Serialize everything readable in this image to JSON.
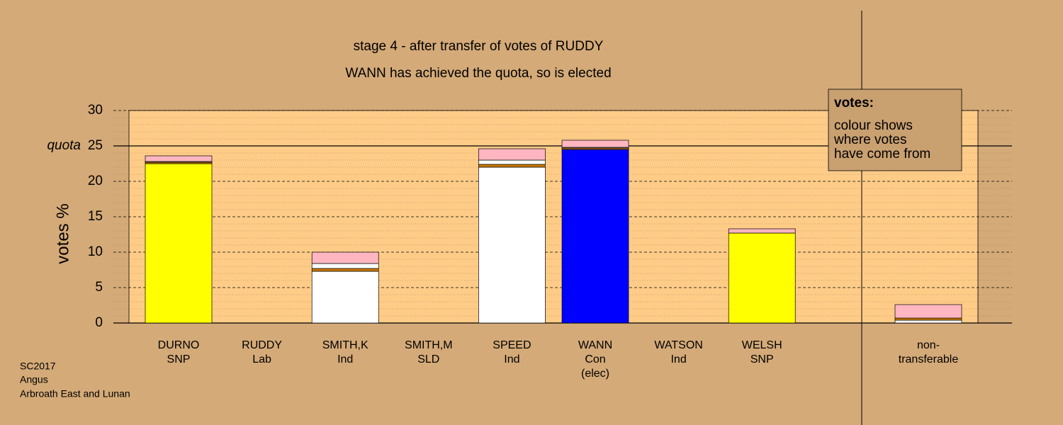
{
  "chart_data": {
    "type": "stacked_bar",
    "title": "stage 4 - after transfer of votes of RUDDY",
    "subtitle": "WANN has achieved the quota, so is elected",
    "y_label": "votes %",
    "categories": [
      [
        "DURNO",
        "SNP"
      ],
      [
        "RUDDY",
        "Lab"
      ],
      [
        "SMITH,K",
        "Ind"
      ],
      [
        "SMITH,M",
        "SLD"
      ],
      [
        "SPEED",
        "Ind"
      ],
      [
        "WANN",
        "Con",
        "(elec)"
      ],
      [
        "WATSON",
        "Ind"
      ],
      [
        "WELSH",
        "SNP"
      ],
      [
        "non-",
        "transferable"
      ]
    ],
    "series": [
      {
        "colors": [
          "#ffff00",
          "#ffffff",
          "#ffffff",
          "#ffffff",
          "#ffffff",
          "#0000ff",
          "#ffffff",
          "#ffff00",
          "#ffffff"
        ],
        "values": [
          22.5,
          0,
          7.3,
          0,
          22.0,
          24.5,
          0,
          12.7,
          0.4
        ]
      },
      {
        "colors": [
          "#cc7a00",
          "#cc7a00",
          "#cc7a00",
          "#cc7a00",
          "#cc7a00",
          "#cc7a00",
          "#cc7a00",
          "#cc7a00",
          "#cc7a00"
        ],
        "values": [
          0.2,
          0,
          0.4,
          0,
          0.4,
          0.2,
          0,
          0,
          0.3
        ]
      },
      {
        "colors": [
          "#ffffff",
          "#ffffff",
          "#ffffff",
          "#ffffff",
          "#ffffff",
          "#ffffff",
          "#ffffff",
          "#ffffff",
          "#ffffff"
        ],
        "values": [
          0.1,
          0,
          0.7,
          0,
          0.6,
          0.1,
          0,
          0,
          0
        ]
      },
      {
        "colors": [
          "#ffb6c1",
          "#ffb6c1",
          "#ffb6c1",
          "#ffb6c1",
          "#ffb6c1",
          "#ffb6c1",
          "#ffb6c1",
          "#ffb6c1",
          "#ffb6c1"
        ],
        "values": [
          0.8,
          0,
          1.6,
          0,
          1.6,
          1.0,
          0,
          0.6,
          1.9
        ]
      }
    ],
    "ylim": [
      0,
      30
    ],
    "yticks": [
      0,
      5,
      10,
      15,
      20,
      25,
      30
    ],
    "yminor": [
      1,
      2,
      3,
      4,
      6,
      7,
      8,
      9,
      11,
      12,
      13,
      14,
      16,
      17,
      18,
      19,
      21,
      22,
      23,
      24,
      26,
      27,
      28,
      29
    ],
    "quota": {
      "value": 25,
      "label": "quota"
    },
    "legend": {
      "title": "votes:",
      "lines": [
        "colour shows",
        "where votes",
        "have come from"
      ]
    },
    "footer": [
      "SC2017",
      "Angus",
      "Arbroath East and Lunan"
    ]
  }
}
